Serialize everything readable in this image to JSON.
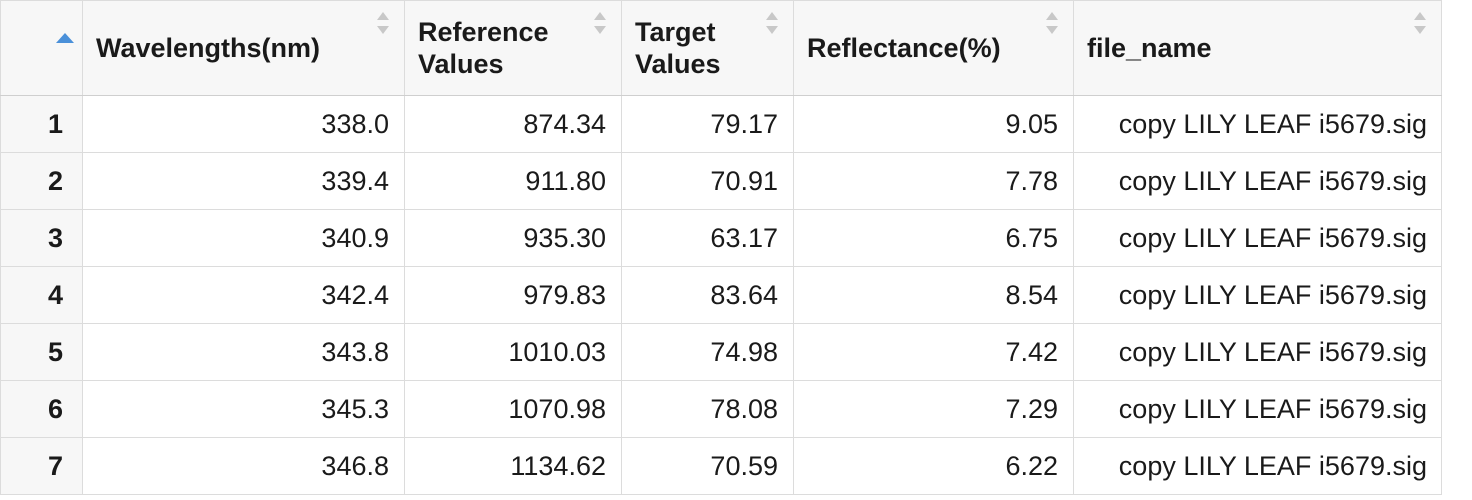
{
  "table": {
    "columns": [
      {
        "label": "Wavelengths(nm)"
      },
      {
        "label": "Reference Values"
      },
      {
        "label": "Target Values"
      },
      {
        "label": "Reflectance(%)"
      },
      {
        "label": "file_name"
      }
    ],
    "rows": [
      {
        "index": "1",
        "wavelength": "338.0",
        "reference": "874.34",
        "target": "79.17",
        "reflectance": "9.05",
        "file_name": "copy LILY LEAF i5679.sig"
      },
      {
        "index": "2",
        "wavelength": "339.4",
        "reference": "911.80",
        "target": "70.91",
        "reflectance": "7.78",
        "file_name": "copy LILY LEAF i5679.sig"
      },
      {
        "index": "3",
        "wavelength": "340.9",
        "reference": "935.30",
        "target": "63.17",
        "reflectance": "6.75",
        "file_name": "copy LILY LEAF i5679.sig"
      },
      {
        "index": "4",
        "wavelength": "342.4",
        "reference": "979.83",
        "target": "83.64",
        "reflectance": "8.54",
        "file_name": "copy LILY LEAF i5679.sig"
      },
      {
        "index": "5",
        "wavelength": "343.8",
        "reference": "1010.03",
        "target": "74.98",
        "reflectance": "7.42",
        "file_name": "copy LILY LEAF i5679.sig"
      },
      {
        "index": "6",
        "wavelength": "345.3",
        "reference": "1070.98",
        "target": "78.08",
        "reflectance": "7.29",
        "file_name": "copy LILY LEAF i5679.sig"
      },
      {
        "index": "7",
        "wavelength": "346.8",
        "reference": "1134.62",
        "target": "70.59",
        "reflectance": "6.22",
        "file_name": "copy LILY LEAF i5679.sig"
      }
    ]
  },
  "icons": {
    "index_sort": "sort-ascending-icon",
    "column_sort": "sort-both-icon"
  },
  "colors": {
    "sort_active": "#4a90d9",
    "sort_inactive": "#c8c8c8",
    "header_bg": "#f7f7f7",
    "border": "#dcdcdc"
  }
}
